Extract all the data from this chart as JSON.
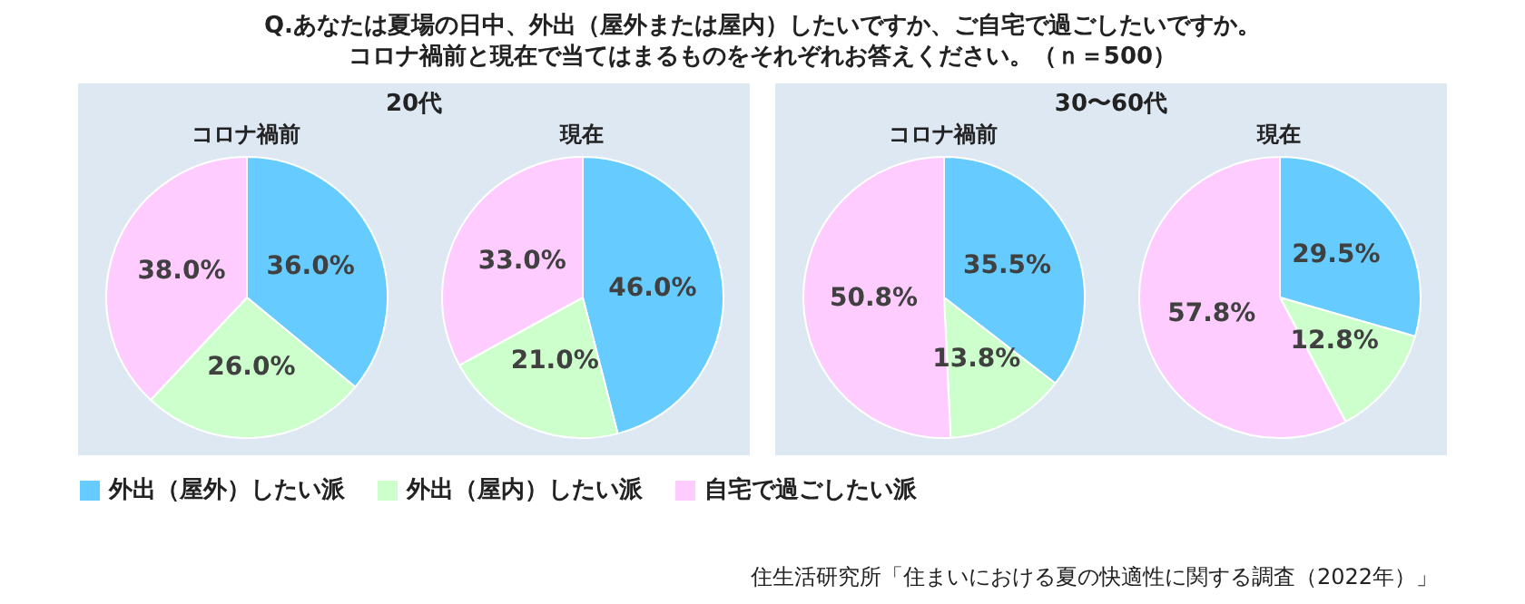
{
  "chart_data": [
    {
      "type": "pie",
      "title": "コロナ禍前",
      "subtitle": "20代",
      "annotations": [
        "Q.あなたは夏場の日中、外出（屋外または屋内）したいですか、ご自宅で過ごしたいですか。",
        "コロナ禍前と現在で当てはまるものをそれぞれお答えください。（ｎ＝500）"
      ],
      "legend": "bottom",
      "categories": [
        "外出（屋外）したい派",
        "外出（屋内）したい派",
        "自宅で過ごしたい派"
      ],
      "colors": [
        "#66ccff",
        "#ccffcc",
        "#ffccff"
      ],
      "values": [
        36.0,
        26.0,
        38.0
      ],
      "value_labels": [
        "36.0%",
        "26.0%",
        "38.0%"
      ]
    },
    {
      "type": "pie",
      "title": "現在",
      "colors": [
        "#66ccff",
        "#ccffcc",
        "#ffccff"
      ],
      "values": [
        46.0,
        21.0,
        33.0
      ],
      "value_labels": [
        "46.0%",
        "21.0%",
        "33.0%"
      ]
    },
    {
      "type": "pie",
      "title": "コロナ禍前",
      "subtitle": "30〜60代",
      "colors": [
        "#66ccff",
        "#ccffcc",
        "#ffccff"
      ],
      "values": [
        35.5,
        13.8,
        50.8
      ],
      "value_labels": [
        "35.5%",
        "13.8%",
        "50.8%"
      ]
    },
    {
      "type": "pie",
      "title": "現在",
      "colors": [
        "#66ccff",
        "#ccffcc",
        "#ffccff"
      ],
      "values": [
        29.5,
        12.8,
        57.8
      ],
      "value_labels": [
        "29.5%",
        "12.8%",
        "57.8%"
      ],
      "annotations": [
        "住生活研究所「住まいにおける夏の快適性に関する調査（2022年）」"
      ]
    }
  ]
}
